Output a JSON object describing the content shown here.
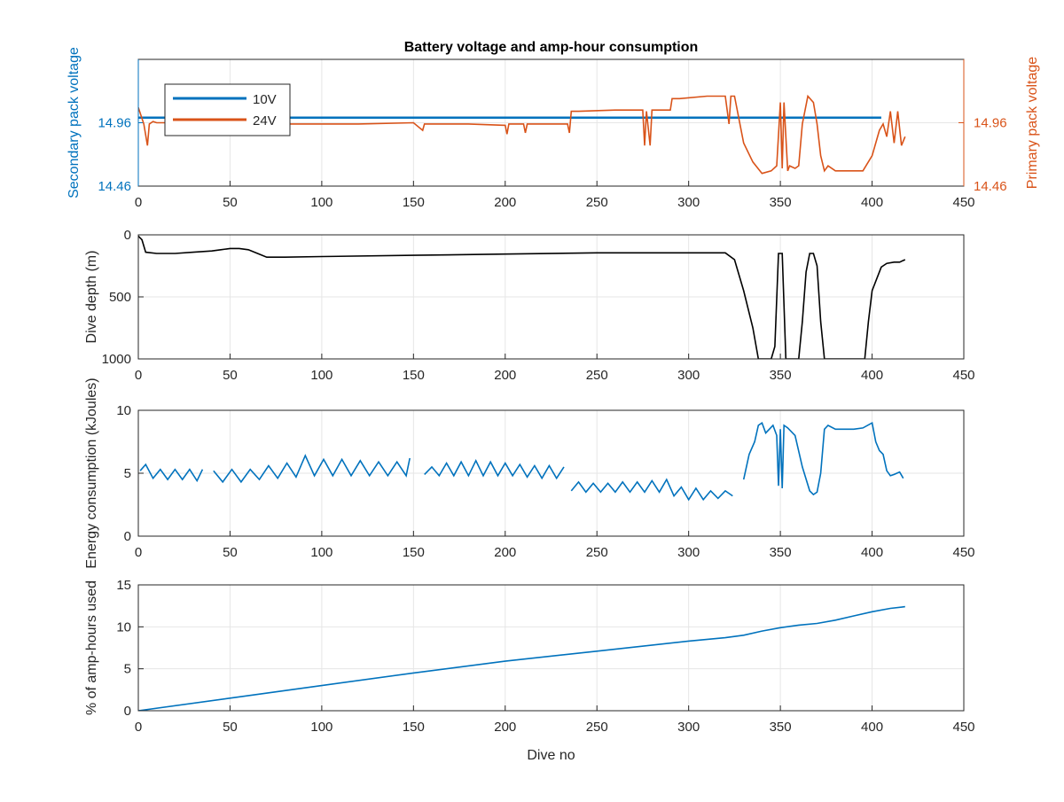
{
  "colors": {
    "blue": "#0072bd",
    "orange": "#d95319",
    "black": "#000000",
    "axis": "#262626",
    "grid": "#e6e6e6"
  },
  "chart_data": [
    {
      "type": "line",
      "title": "Battery voltage and amp-hour consumption",
      "xlabel": "",
      "ylabel_left": "Secondary pack voltage",
      "ylabel_right": "Primary pack voltage",
      "xlim": [
        0,
        450
      ],
      "xticks": [
        0,
        50,
        100,
        150,
        200,
        250,
        300,
        350,
        400,
        450
      ],
      "ylim": [
        14.46,
        15.46
      ],
      "yticks_left": [
        "14.46",
        "14.96"
      ],
      "yticks_right": [
        "14.46",
        "14.96"
      ],
      "grid": true,
      "legend": {
        "placement": "top-left",
        "entries": [
          "10V",
          "24V"
        ]
      },
      "series": [
        {
          "name": "10V",
          "axis": "left",
          "color": "#0072bd",
          "x": [
            0,
            405
          ],
          "y": [
            15.0,
            15.0
          ]
        },
        {
          "name": "24V",
          "axis": "right",
          "color": "#d95319",
          "x": [
            0,
            3,
            5,
            6,
            8,
            10,
            20,
            40,
            60,
            70,
            80,
            100,
            120,
            150,
            155,
            156,
            160,
            180,
            200,
            201,
            202,
            210,
            211,
            212,
            220,
            234,
            235,
            236,
            240,
            260,
            275,
            276,
            277,
            279,
            280,
            285,
            290,
            291,
            295,
            310,
            320,
            322,
            323,
            325,
            330,
            335,
            340,
            345,
            348,
            350,
            351,
            352,
            354,
            355,
            358,
            360,
            362,
            365,
            368,
            370,
            372,
            374,
            376,
            380,
            385,
            390,
            395,
            400,
            402,
            404,
            406,
            408,
            410,
            412,
            414,
            416,
            418
          ],
          "y": [
            15.08,
            14.95,
            14.78,
            14.95,
            14.97,
            14.96,
            14.96,
            14.96,
            14.96,
            14.95,
            14.95,
            14.95,
            14.95,
            14.96,
            14.9,
            14.95,
            14.95,
            14.95,
            14.94,
            14.87,
            14.95,
            14.95,
            14.88,
            14.95,
            14.95,
            14.95,
            14.88,
            15.05,
            15.05,
            15.06,
            15.06,
            14.78,
            15.05,
            14.78,
            15.06,
            15.06,
            15.06,
            15.15,
            15.15,
            15.17,
            15.17,
            14.95,
            15.17,
            15.17,
            14.8,
            14.65,
            14.56,
            14.58,
            14.62,
            15.12,
            14.6,
            15.12,
            14.58,
            14.62,
            14.6,
            14.62,
            14.95,
            15.17,
            15.12,
            14.95,
            14.7,
            14.58,
            14.62,
            14.58,
            14.58,
            14.58,
            14.58,
            14.7,
            14.8,
            14.9,
            14.95,
            14.85,
            15.05,
            14.8,
            15.05,
            14.78,
            14.85
          ]
        }
      ]
    },
    {
      "type": "line",
      "title": "",
      "xlabel": "",
      "ylabel": "Dive depth (m)",
      "xlim": [
        0,
        450
      ],
      "xticks": [
        0,
        50,
        100,
        150,
        200,
        250,
        300,
        350,
        400,
        450
      ],
      "ylim": [
        0,
        1000
      ],
      "y_reversed": true,
      "yticks": [
        0,
        500,
        1000
      ],
      "grid": true,
      "series": [
        {
          "color": "#000000",
          "x": [
            0,
            2,
            4,
            10,
            20,
            30,
            40,
            45,
            50,
            55,
            60,
            65,
            70,
            80,
            100,
            150,
            200,
            250,
            300,
            320,
            325,
            330,
            335,
            338,
            345,
            347,
            349,
            351,
            353,
            360,
            362,
            364,
            366,
            368,
            370,
            372,
            374,
            376,
            380,
            390,
            396,
            398,
            400,
            405,
            408,
            412,
            415,
            418
          ],
          "y": [
            10,
            40,
            140,
            150,
            150,
            140,
            130,
            120,
            110,
            110,
            120,
            150,
            180,
            180,
            175,
            165,
            155,
            145,
            145,
            145,
            200,
            450,
            750,
            1000,
            1000,
            900,
            150,
            150,
            1000,
            1000,
            700,
            300,
            150,
            150,
            250,
            700,
            1000,
            1000,
            1000,
            1000,
            1000,
            700,
            450,
            260,
            230,
            220,
            220,
            200
          ]
        }
      ]
    },
    {
      "type": "line",
      "title": "",
      "xlabel": "",
      "ylabel": "Energy consumption (kJoules)",
      "xlim": [
        0,
        450
      ],
      "xticks": [
        0,
        50,
        100,
        150,
        200,
        250,
        300,
        350,
        400,
        450
      ],
      "ylim": [
        0,
        10
      ],
      "yticks": [
        0,
        5,
        10
      ],
      "grid": true,
      "series": [
        {
          "color": "#0072bd",
          "segments": [
            {
              "x": [
                1,
                4,
                8,
                12,
                16,
                20,
                24,
                28,
                32,
                35
              ],
              "y": [
                5.2,
                5.7,
                4.6,
                5.3,
                4.5,
                5.3,
                4.5,
                5.3,
                4.4,
                5.3
              ]
            },
            {
              "x": [
                41,
                46,
                51,
                56,
                61,
                66,
                71,
                76,
                81,
                86,
                91,
                96,
                101,
                106,
                111,
                116,
                121,
                126,
                131,
                136,
                141,
                146,
                148
              ],
              "y": [
                5.2,
                4.3,
                5.3,
                4.3,
                5.3,
                4.5,
                5.6,
                4.6,
                5.8,
                4.7,
                6.4,
                4.8,
                6.1,
                4.8,
                6.1,
                4.8,
                6.0,
                4.8,
                5.9,
                4.8,
                5.9,
                4.8,
                6.2
              ]
            },
            {
              "x": [
                156,
                160,
                164,
                168,
                172,
                176,
                180,
                184,
                188,
                192,
                196,
                200,
                204,
                208,
                212,
                216,
                220,
                224,
                228,
                232
              ],
              "y": [
                4.9,
                5.5,
                4.8,
                5.8,
                4.8,
                5.9,
                4.8,
                6.0,
                4.8,
                5.9,
                4.8,
                5.8,
                4.8,
                5.7,
                4.7,
                5.6,
                4.6,
                5.6,
                4.6,
                5.5
              ]
            },
            {
              "x": [
                236,
                240,
                244,
                248,
                252,
                256,
                260,
                264,
                268,
                272,
                276,
                280,
                284,
                288,
                292,
                296,
                300,
                304,
                308,
                312,
                316,
                320,
                324
              ],
              "y": [
                3.6,
                4.3,
                3.5,
                4.2,
                3.5,
                4.2,
                3.5,
                4.3,
                3.5,
                4.3,
                3.5,
                4.4,
                3.5,
                4.5,
                3.2,
                3.9,
                2.9,
                3.8,
                2.9,
                3.6,
                3.0,
                3.6,
                3.2
              ]
            },
            {
              "x": [
                330,
                333,
                336,
                338,
                340,
                342,
                346,
                348,
                349,
                350,
                351,
                352,
                354,
                358,
                362,
                366,
                368,
                370,
                372,
                374,
                376,
                380,
                385,
                390,
                395,
                400,
                402,
                404,
                406,
                408,
                410,
                412,
                415,
                417
              ],
              "y": [
                4.5,
                6.5,
                7.5,
                8.8,
                9.0,
                8.2,
                8.8,
                8.0,
                4.0,
                8.5,
                3.8,
                8.8,
                8.6,
                8.0,
                5.5,
                3.6,
                3.3,
                3.5,
                5.0,
                8.5,
                8.8,
                8.5,
                8.5,
                8.5,
                8.6,
                9.0,
                7.5,
                6.8,
                6.5,
                5.2,
                4.8,
                4.9,
                5.1,
                4.6
              ]
            }
          ]
        }
      ]
    },
    {
      "type": "line",
      "title": "",
      "xlabel": "Dive no",
      "ylabel": "% of amp-hours used",
      "xlim": [
        0,
        450
      ],
      "xticks": [
        0,
        50,
        100,
        150,
        200,
        250,
        300,
        350,
        400,
        450
      ],
      "ylim": [
        0,
        15
      ],
      "yticks": [
        0,
        5,
        10,
        15
      ],
      "grid": true,
      "series": [
        {
          "color": "#0072bd",
          "x": [
            0,
            50,
            100,
            150,
            200,
            250,
            300,
            320,
            330,
            340,
            350,
            360,
            370,
            380,
            390,
            400,
            410,
            418
          ],
          "y": [
            0,
            1.5,
            3.0,
            4.5,
            5.9,
            7.1,
            8.3,
            8.7,
            9.0,
            9.5,
            9.9,
            10.2,
            10.4,
            10.8,
            11.3,
            11.8,
            12.2,
            12.4
          ]
        }
      ]
    }
  ]
}
